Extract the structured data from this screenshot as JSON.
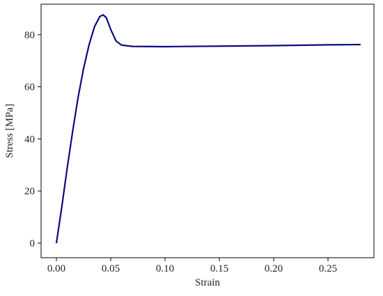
{
  "chart_data": {
    "type": "line",
    "x_label": "Strain",
    "y_label": "Stress [MPa]",
    "x": [
      0,
      0.005,
      0.01,
      0.015,
      0.02,
      0.025,
      0.03,
      0.035,
      0.04,
      0.043,
      0.046,
      0.05,
      0.055,
      0.06,
      0.07,
      0.1,
      0.15,
      0.2,
      0.25,
      0.28
    ],
    "series": [
      {
        "color": "#0a0a80",
        "values": [
          0,
          14,
          29,
          43,
          56,
          67,
          76,
          83,
          87,
          87.6,
          86.5,
          82,
          77.5,
          76,
          75.5,
          75.4,
          75.6,
          75.8,
          76.1,
          76.2
        ]
      }
    ],
    "xlim": [
      -0.0141,
      0.2923
    ],
    "ylim": [
      -5.6,
      91.7
    ],
    "xticks": [
      {
        "value": 0,
        "label": "0.00"
      },
      {
        "value": 0.05,
        "label": "0.05"
      },
      {
        "value": 0.1,
        "label": "0.10"
      },
      {
        "value": 0.15,
        "label": "0.15"
      },
      {
        "value": 0.2,
        "label": "0.20"
      },
      {
        "value": 0.25,
        "label": "0.25"
      }
    ],
    "yticks": [
      0,
      20,
      40,
      60,
      80
    ],
    "grid": false
  }
}
